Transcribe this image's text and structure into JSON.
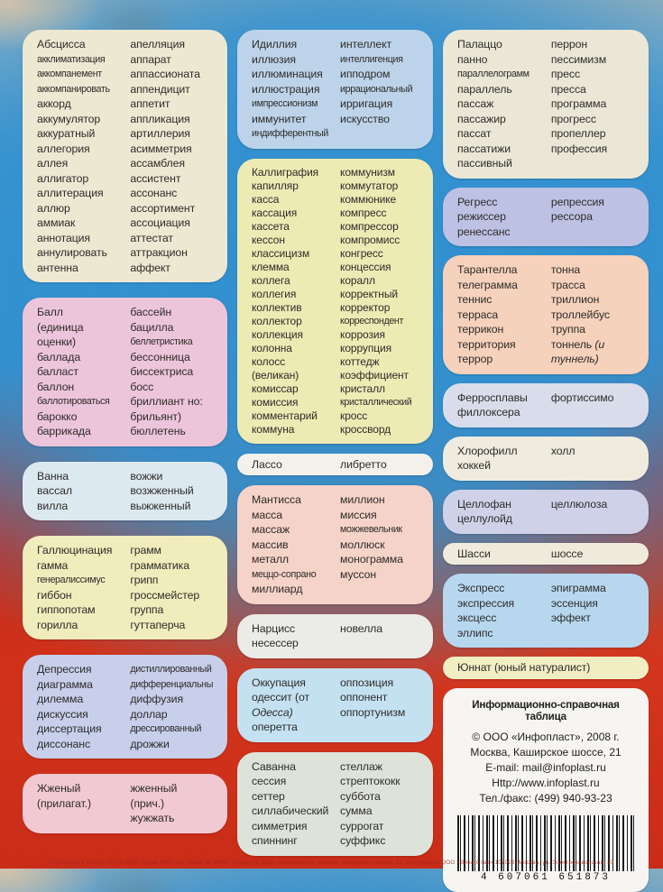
{
  "colors": {
    "center_blue": "#3b93cc",
    "edge_red": "#cc2a16",
    "text": "#2e2c2a"
  },
  "columns": [
    {
      "boxes": [
        {
          "id": "a",
          "bg": "#ece8d2",
          "left": [
            "Абсцисса",
            {
              "t": "акклиматизация",
              "sm": true
            },
            {
              "t": "аккомпанемент",
              "sm": true
            },
            {
              "t": "аккомпанировать",
              "sm": true
            },
            "аккорд",
            "аккумулятор",
            "аккуратный",
            "аллегория",
            "аллея",
            "аллигатор",
            "аллитерация",
            "аллюр",
            "аммиак",
            "аннотация",
            "аннулировать",
            "антенна"
          ],
          "right": [
            "апелляция",
            "аппарат",
            "аппассионата",
            "аппендицит",
            "аппетит",
            "аппликация",
            "артиллерия",
            "асимметрия",
            "ассамблея",
            "ассистент",
            "ассонанс",
            "ассортимент",
            "ассоциация",
            "аттестат",
            "аттракцион",
            "аффект"
          ]
        },
        {
          "id": "b",
          "bg": "#edc5da",
          "left": [
            "Балл",
            "(единица",
            "оценки)",
            "баллада",
            "балласт",
            "баллон",
            {
              "t": "баллотироваться",
              "sm": true
            },
            "барокко",
            "баррикада"
          ],
          "right": [
            "бассейн",
            "бацилла",
            {
              "t": "беллетристика",
              "sm": true
            },
            "бессонница",
            "биссектриса",
            "босс",
            "бриллиант но:",
            "брильянт)",
            "бюллетень"
          ]
        },
        {
          "id": "v",
          "bg": "#dde9f1",
          "left": [
            "Ванна",
            "вассал",
            "вилла"
          ],
          "right": [
            "вожжи",
            "возжженный",
            "выжженный"
          ]
        },
        {
          "id": "g",
          "bg": "#f0ecbc",
          "left": [
            "Галлюцинация",
            "гамма",
            {
              "t": "генералиссимус",
              "sm": true
            },
            "гиббон",
            "гиппопотам",
            "горилла"
          ],
          "right": [
            "грамм",
            "грамматика",
            "грипп",
            "гроссмейстер",
            "группа",
            "гуттаперча"
          ]
        },
        {
          "id": "d",
          "bg": "#c7cfeb",
          "left": [
            "Депрессия",
            "диаграмма",
            "дилемма",
            "дискуссия",
            "диссертация",
            "диссонанс"
          ],
          "right": [
            {
              "t": "дистиллированный",
              "sm": true
            },
            {
              "t": "дифференциальный",
              "sm": true
            },
            "диффузия",
            "доллар",
            {
              "t": "дрессированный",
              "sm": true
            },
            "дрожжи"
          ]
        },
        {
          "id": "zh",
          "bg": "#f2c9d3",
          "left": [
            "Жженый",
            "(прилагат.)"
          ],
          "right": [
            "жженный",
            "(прич.)",
            "жужжать"
          ]
        }
      ]
    },
    {
      "boxes": [
        {
          "id": "i",
          "bg": "#bdd3e9",
          "left": [
            "Идиллия",
            "иллюзия",
            "иллюминация",
            "иллюстрация",
            {
              "t": "импрессионизм",
              "sm": true
            },
            "иммунитет",
            {
              "t": "индифферентный",
              "sm": true
            }
          ],
          "right": [
            "интеллект",
            {
              "t": "интеллигенция",
              "sm": true
            },
            "ипподром",
            {
              "t": "иррациональный",
              "sm": true
            },
            "ирригация",
            "искусство"
          ]
        },
        {
          "id": "k",
          "bg": "#eeeab4",
          "tight": true,
          "left": [
            "Каллиграфия",
            "капилляр",
            "касса",
            "кассация",
            "кассета",
            "кессон",
            "классицизм",
            "клемма",
            "коллега",
            "коллегия",
            "коллектив",
            "коллектор",
            "коллекция",
            "колонна",
            "колосс",
            "(великан)",
            "комиссар",
            "комиссия",
            "комментарий",
            "коммуна"
          ],
          "right": [
            "коммунизм",
            "коммутатор",
            "коммюнике",
            "компресс",
            "компрессор",
            "компромисс",
            "конгресс",
            "концессия",
            "коралл",
            "корректный",
            "корректор",
            {
              "t": "корреспондент",
              "sm": true
            },
            "коррозия",
            "коррупция",
            "коттедж",
            "коэффициент",
            "кристалл",
            {
              "t": "кристаллический",
              "sm": true
            },
            "кросс",
            "кроссворд"
          ]
        },
        {
          "id": "l",
          "bg": "#f3f1e9",
          "slim": true,
          "left": [
            "Лассо"
          ],
          "right": [
            "либретто"
          ]
        },
        {
          "id": "m",
          "bg": "#f6d3c8",
          "left": [
            "Мантисса",
            "масса",
            "массаж",
            "массив",
            "металл",
            {
              "t": "меццо-сопрано",
              "sm": true
            },
            "миллиард"
          ],
          "right": [
            "миллион",
            "миссия",
            {
              "t": "можжевельник",
              "sm": true
            },
            "моллюск",
            "монограмма",
            "муссон"
          ]
        },
        {
          "id": "n",
          "bg": "#ebebe7",
          "left": [
            "Нарцисс",
            "несессер"
          ],
          "right": [
            "новелла"
          ]
        },
        {
          "id": "o",
          "bg": "#c4e1f2",
          "left": [
            "Оккупация",
            "одессит (от",
            {
              "t": "Одесса)",
              "i": true
            },
            "оперетта"
          ],
          "right": [
            "оппозиция",
            "оппонент",
            "оппортунизм"
          ]
        },
        {
          "id": "s",
          "bg": "#dee3d9",
          "left": [
            "Саванна",
            "сессия",
            "сеттер",
            "силлабический",
            "симметрия",
            "спиннинг"
          ],
          "right": [
            "стеллаж",
            "стрептококк",
            "суббота",
            "сумма",
            "суррогат",
            "суффикс"
          ]
        }
      ]
    },
    {
      "boxes": [
        {
          "id": "p",
          "bg": "#eae7d7",
          "left": [
            "Палаццо",
            "панно",
            {
              "t": "параллелограмм",
              "sm": true
            },
            "параллель",
            "пассаж",
            "пассажир",
            "пассат",
            "пассатижи",
            "пассивный"
          ],
          "right": [
            "перрон",
            "пессимизм",
            "пресс",
            "пресса",
            "программа",
            "прогресс",
            "пропеллер",
            "профессия"
          ]
        },
        {
          "id": "r",
          "bg": "#bdc1e3",
          "left": [
            "Регресс",
            "режиссер",
            "ренессанс"
          ],
          "right": [
            "репрессия",
            "рессора"
          ]
        },
        {
          "id": "t",
          "bg": "#f6d1bc",
          "left": [
            "Тарантелла",
            "телеграмма",
            "теннис",
            "терраса",
            "террикон",
            "территория",
            "террор"
          ],
          "right": [
            "тонна",
            "трасса",
            "триллион",
            "троллейбус",
            "труппа",
            {
              "parts": [
                {
                  "t": "тоннель "
                },
                {
                  "t": "(и",
                  "i": true
                }
              ]
            },
            {
              "t": "туннель)",
              "i": true
            }
          ]
        },
        {
          "id": "f",
          "bg": "#d9ddeb",
          "left": [
            "Ферросплавы",
            "филлоксера"
          ],
          "right": [
            "фортиссимо"
          ]
        },
        {
          "id": "h",
          "bg": "#efecdf",
          "left": [
            "Хлорофилл",
            "хоккей"
          ],
          "right": [
            "холл"
          ]
        },
        {
          "id": "c",
          "bg": "#cfd1e9",
          "left": [
            "Целлофан",
            "целлулойд"
          ],
          "right": [
            "целлюлоза"
          ]
        },
        {
          "id": "sh",
          "bg": "#efebdc",
          "slim": true,
          "left": [
            "Шасси"
          ],
          "right": [
            "шоссе"
          ]
        },
        {
          "id": "e",
          "bg": "#b7d7ef",
          "left": [
            "Экспресс",
            "экспрессия",
            "эксцесс",
            "эллипс"
          ],
          "right": [
            "эпиграмма",
            "эссенция",
            "эффект"
          ]
        },
        {
          "id": "yu",
          "bg": "#f1eec4",
          "slim": true,
          "single": "Юннат (юный натуралист)"
        }
      ]
    }
  ],
  "info": {
    "title": "Информационно-справочная таблица",
    "lines": [
      "© ООО «Инфопласт», 2008 г.",
      "Москва, Каширское шоссе, 21",
      "E-mail: mail@infoplast.ru",
      "Http://www.infoplast.ru",
      "Тел./факс: (499) 940-93-23"
    ],
    "barcode": "4 607061 651873"
  },
  "footer": {
    "text": "Подписано в печать 27.02.2008. Тираж 4000 экз. Заказ № 16440. Издатель ООО «Инфопласт». Москва, Каширское шоссе, 21. Типография ООО «Вива-Стар» 107023, Москва, ул. Электрозаводская, 20"
  }
}
